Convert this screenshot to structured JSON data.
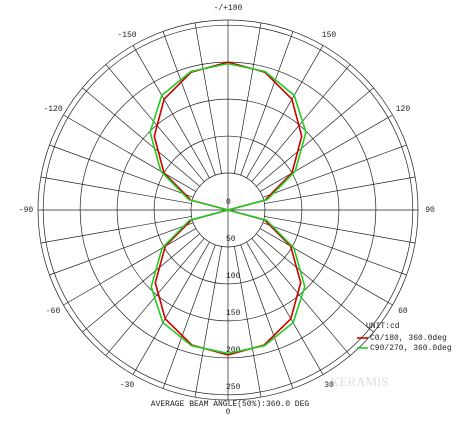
{
  "chart_data": {
    "type": "polar",
    "footer": "AVERAGE BEAM ANGLE(50%):360.0 DEG",
    "unit_label": "UNIT:cd",
    "watermark": "KERAMIS",
    "x": [
      -180,
      -165,
      -150,
      -135,
      -120,
      -105,
      -90,
      -75,
      -60,
      -45,
      -30,
      -15,
      0,
      15,
      30,
      45,
      60,
      75,
      90,
      105,
      120,
      135,
      150,
      165,
      180
    ],
    "series": [
      {
        "name": "C0/180, 360.0deg",
        "color": "#cc0000",
        "values": [
          200,
          193,
          173,
          141,
          100,
          52,
          0,
          51,
          98,
          139,
          170,
          189,
          196,
          189,
          170,
          139,
          98,
          51,
          0,
          52,
          100,
          141,
          173,
          193,
          200
        ]
      },
      {
        "name": "C90/270, 360.0deg",
        "color": "#22cc22",
        "values": [
          198,
          194,
          179,
          149,
          105,
          55,
          0,
          54,
          103,
          147,
          176,
          190,
          194,
          190,
          176,
          147,
          103,
          54,
          0,
          55,
          105,
          149,
          179,
          194,
          198
        ]
      }
    ],
    "rlim": [
      0,
      257
    ],
    "rticks": [
      0,
      50,
      100,
      150,
      200,
      250
    ],
    "angle_ticks": [
      {
        "value": 180,
        "label": "-/+180"
      },
      150,
      120,
      90,
      60,
      30,
      0,
      -30,
      -60,
      -90,
      -120,
      -150
    ]
  }
}
